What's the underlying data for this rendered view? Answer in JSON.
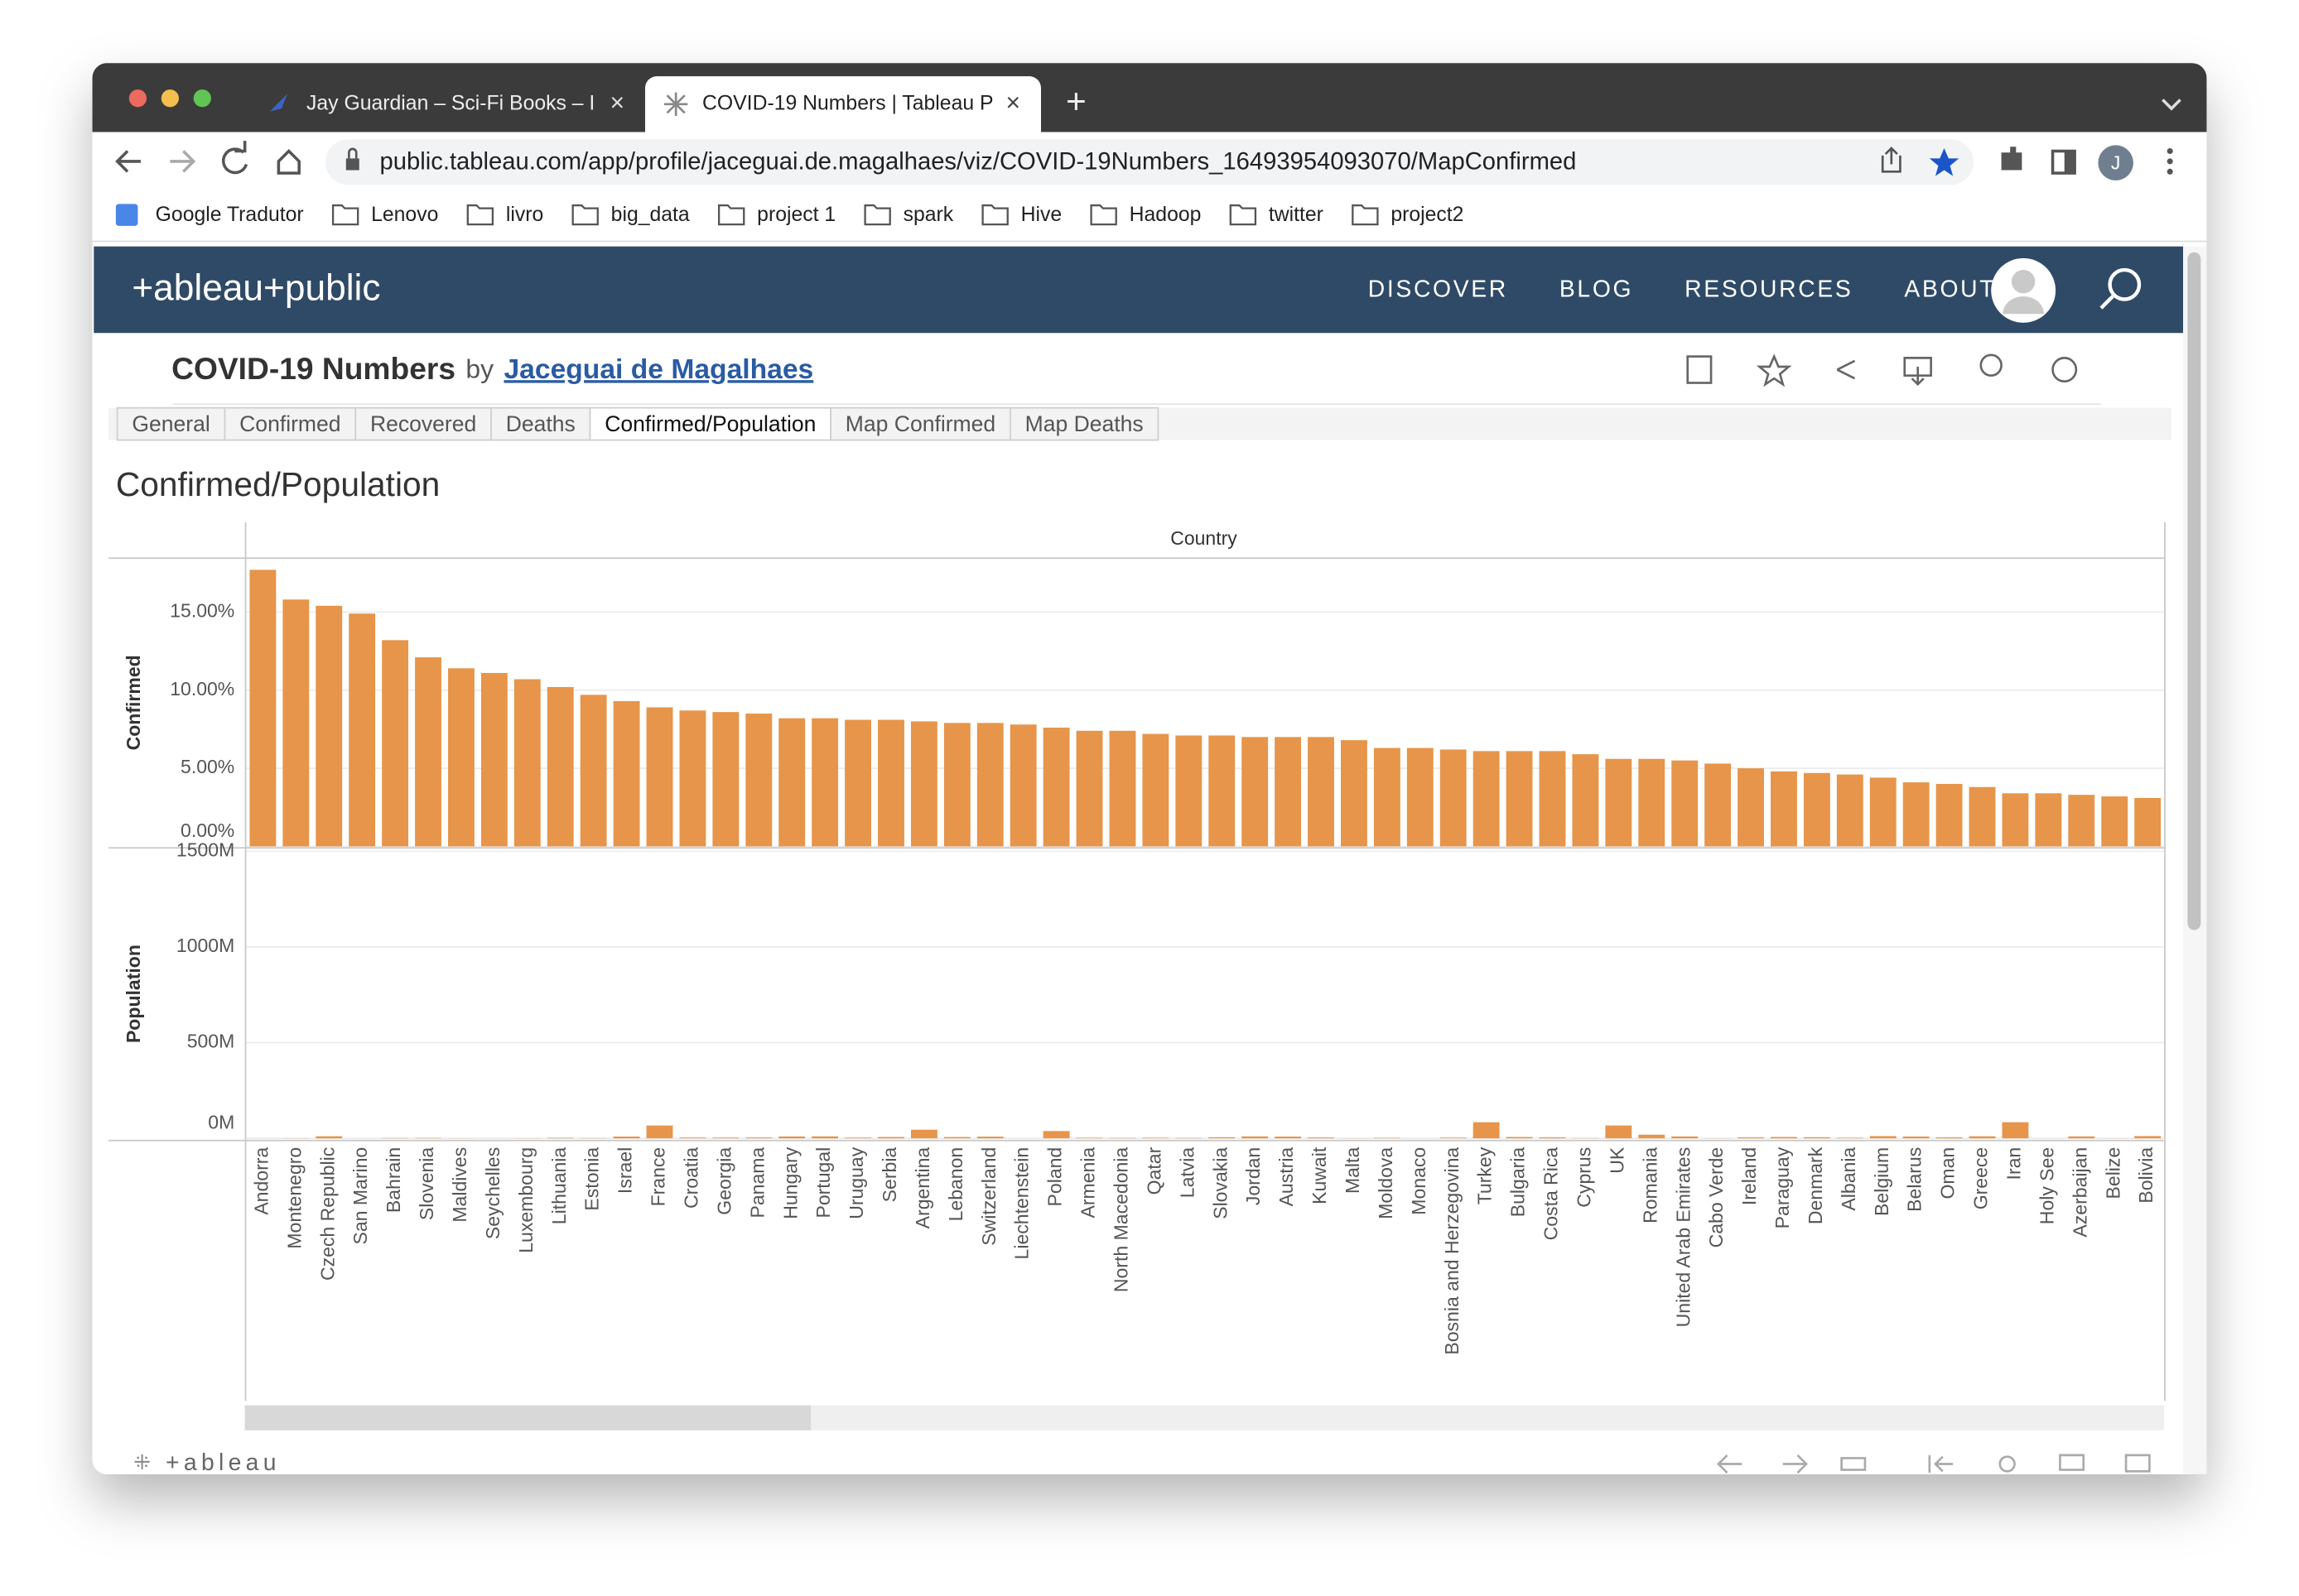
{
  "browser": {
    "tabs": [
      "Jay Guardian – Sci-Fi Books – I",
      "COVID-19 Numbers | Tableau P"
    ],
    "url": "public.tableau.com/app/profile/jaceguai.de.magalhaes/viz/COVID-19Numbers_16493954093070/MapConfirmed",
    "profile": "J",
    "bookmarks": [
      "Google Tradutor",
      "Lenovo",
      "livro",
      "big_data",
      "project 1",
      "spark",
      "Hive",
      "Hadoop",
      "twitter",
      "project2"
    ]
  },
  "site": {
    "logo": "+ableau+public",
    "nav": [
      "DISCOVER",
      "BLOG",
      "RESOURCES",
      "ABOUT"
    ],
    "viz_title": "COVID-19 Numbers",
    "by": "by",
    "author": "Jaceguai de Magalhaes",
    "sheets": [
      "General",
      "Confirmed",
      "Recovered",
      "Deaths",
      "Confirmed/Population",
      "Map Confirmed",
      "Map Deaths"
    ],
    "active_sheet": 4,
    "footer_logo": "+ableau"
  },
  "chart_data": {
    "type": "bar",
    "title": "Confirmed/Population",
    "x_label": "Country",
    "categories": [
      "Andorra",
      "Montenegro",
      "Czech Republic",
      "San Marino",
      "Bahrain",
      "Slovenia",
      "Maldives",
      "Seychelles",
      "Luxembourg",
      "Lithuania",
      "Estonia",
      "Israel",
      "France",
      "Croatia",
      "Georgia",
      "Panama",
      "Hungary",
      "Portugal",
      "Uruguay",
      "Serbia",
      "Argentina",
      "Lebanon",
      "Switzerland",
      "Liechtenstein",
      "Poland",
      "Armenia",
      "North Macedonia",
      "Qatar",
      "Latvia",
      "Slovakia",
      "Jordan",
      "Austria",
      "Kuwait",
      "Malta",
      "Moldova",
      "Monaco",
      "Bosnia and Herzegovina",
      "Turkey",
      "Bulgaria",
      "Costa Rica",
      "Cyprus",
      "UK",
      "Romania",
      "United Arab Emirates",
      "Cabo Verde",
      "Ireland",
      "Paraguay",
      "Denmark",
      "Albania",
      "Belgium",
      "Belarus",
      "Oman",
      "Greece",
      "Iran",
      "Holy See",
      "Azerbaijan",
      "Belize",
      "Bolivia"
    ],
    "grid": true,
    "series": [
      {
        "name": "Confirmed",
        "color": "#e6954a",
        "ylim": [
          0,
          18.4
        ],
        "yticks": [
          {
            "value": 0,
            "label": "0.00%"
          },
          {
            "value": 5,
            "label": "5.00%"
          },
          {
            "value": 10,
            "label": "10.00%"
          },
          {
            "value": 15,
            "label": "15.00%"
          }
        ],
        "values": [
          17.7,
          15.8,
          15.4,
          14.9,
          13.2,
          12.1,
          11.4,
          11.1,
          10.7,
          10.2,
          9.7,
          9.3,
          8.9,
          8.7,
          8.6,
          8.5,
          8.2,
          8.2,
          8.1,
          8.1,
          8.0,
          7.9,
          7.9,
          7.8,
          7.6,
          7.4,
          7.4,
          7.2,
          7.1,
          7.1,
          7.0,
          7.0,
          7.0,
          6.8,
          6.3,
          6.3,
          6.2,
          6.1,
          6.1,
          6.1,
          5.9,
          5.6,
          5.6,
          5.5,
          5.3,
          5.0,
          4.8,
          4.7,
          4.6,
          4.4,
          4.1,
          4.0,
          3.8,
          3.4,
          3.4,
          3.3,
          3.2,
          3.1
        ]
      },
      {
        "name": "Population",
        "color": "#e6954a",
        "ylim": [
          0,
          1510
        ],
        "yticks": [
          {
            "value": 0,
            "label": "0M"
          },
          {
            "value": 500,
            "label": "500M"
          },
          {
            "value": 1000,
            "label": "1000M"
          },
          {
            "value": 1500,
            "label": "1500M"
          }
        ],
        "values": [
          0.1,
          0.6,
          10.7,
          0.0,
          1.7,
          2.1,
          0.5,
          0.1,
          0.6,
          2.8,
          1.3,
          9.2,
          67,
          4.0,
          3.7,
          4.3,
          9.7,
          10.3,
          3.5,
          6.9,
          45,
          6.8,
          8.7,
          0.0,
          38,
          3.0,
          2.1,
          2.9,
          1.9,
          5.5,
          10.2,
          9.0,
          4.3,
          0.5,
          2.6,
          0.0,
          3.3,
          84,
          6.9,
          5.1,
          1.2,
          67,
          19,
          9.9,
          0.6,
          5.0,
          7.1,
          5.8,
          2.9,
          11.6,
          9.4,
          5.1,
          10.7,
          84,
          0.0,
          10.1,
          0.4,
          11.7
        ]
      }
    ]
  }
}
